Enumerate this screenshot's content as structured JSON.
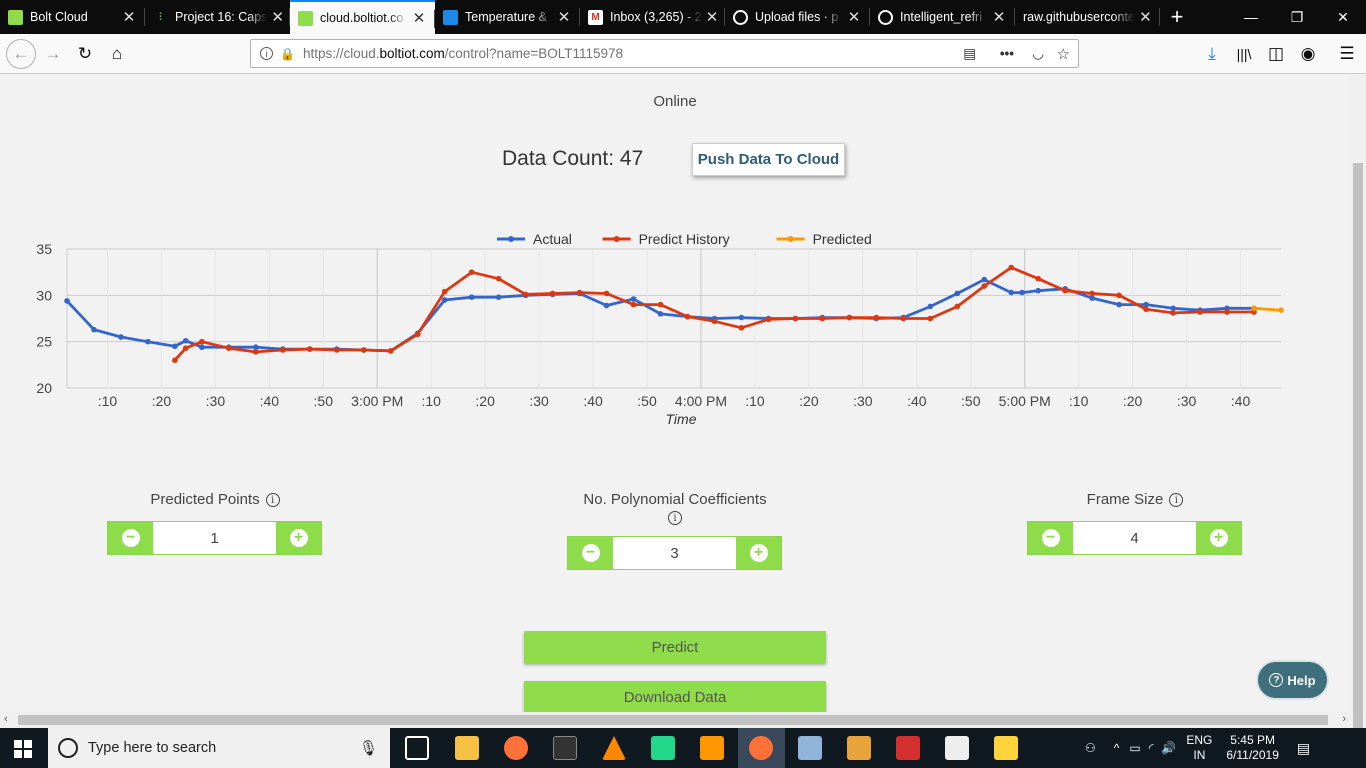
{
  "tabs": [
    {
      "label": "Bolt Cloud",
      "favicon": "bolt-icon",
      "color": "#8fdc4a",
      "active": false
    },
    {
      "label": "Project 16: Caps",
      "favicon": "soundwave-icon",
      "color": "#6bbf3a",
      "active": false
    },
    {
      "label": "cloud.boltiot.co",
      "favicon": "bolt-icon",
      "color": "#8fdc4a",
      "active": true
    },
    {
      "label": "Temperature &",
      "favicon": "hackster-icon",
      "color": "#1e88e5",
      "active": false
    },
    {
      "label": "Inbox (3,265) - 2",
      "favicon": "gmail-icon",
      "color": "#d93025",
      "active": false
    },
    {
      "label": "Upload files · p",
      "favicon": "github-icon",
      "color": "#ffffff",
      "active": false
    },
    {
      "label": "Intelligent_refri",
      "favicon": "github-icon",
      "color": "#ffffff",
      "active": false
    },
    {
      "label": "raw.githubuserconte",
      "favicon": "",
      "color": "",
      "active": false
    }
  ],
  "url": {
    "prefix": "https://cloud.",
    "domain": "boltiot.com",
    "path": "/control?name=BOLT1115978"
  },
  "page": {
    "status": "Online",
    "data_count_label": "Data Count: 47",
    "push_button": "Push Data To Cloud",
    "controls": {
      "predicted_points": {
        "label": "Predicted Points",
        "value": "1"
      },
      "poly_coeffs": {
        "label": "No. Polynomial Coefficients",
        "value": "3"
      },
      "frame_size": {
        "label": "Frame Size",
        "value": "4"
      }
    },
    "predict_button": "Predict",
    "download_button": "Download Data",
    "help_button": "Help"
  },
  "chart_data": {
    "type": "line",
    "title": "",
    "xlabel": "Time",
    "ylabel": "",
    "ylim": [
      20,
      35
    ],
    "yticks": [
      20,
      25,
      30,
      35
    ],
    "x_ticks": [
      ":10",
      ":20",
      ":30",
      ":40",
      ":50",
      "3:00 PM",
      ":10",
      ":20",
      ":30",
      ":40",
      ":50",
      "4:00 PM",
      ":10",
      ":20",
      ":30",
      ":40",
      ":50",
      "5:00 PM",
      ":10",
      ":20",
      ":30",
      ":40"
    ],
    "x_unit": "minutes after 2:00 PM",
    "x_tick_values": [
      10,
      20,
      30,
      40,
      50,
      60,
      70,
      80,
      90,
      100,
      110,
      120,
      130,
      140,
      150,
      160,
      170,
      180,
      190,
      200,
      210,
      220
    ],
    "xlim": [
      2.5,
      227.5
    ],
    "legend_position": "top-center",
    "series": [
      {
        "name": "Actual",
        "color": "#3366cc",
        "x": [
          2.5,
          7.5,
          12.5,
          17.5,
          22.5,
          24.5,
          27.5,
          32.5,
          37.5,
          42.5,
          47.5,
          52.5,
          57.5,
          62.5,
          67.5,
          72.5,
          77.5,
          82.5,
          87.5,
          92.5,
          97.5,
          102.5,
          107.5,
          112.5,
          117.5,
          122.5,
          127.5,
          132.5,
          137.5,
          142.5,
          147.5,
          152.5,
          157.5,
          162.5,
          167.5,
          172.5,
          177.5,
          179.5,
          182.5,
          187.5,
          192.5,
          197.5,
          202.5,
          207.5,
          212.5,
          217.5,
          222.5
        ],
        "y": [
          29.4,
          26.3,
          25.5,
          25.0,
          24.5,
          25.1,
          24.4,
          24.4,
          24.4,
          24.2,
          24.2,
          24.2,
          24.1,
          24.0,
          25.9,
          29.5,
          29.8,
          29.8,
          30.0,
          30.1,
          30.2,
          28.9,
          29.6,
          28.0,
          27.7,
          27.5,
          27.6,
          27.5,
          27.5,
          27.6,
          27.6,
          27.5,
          27.6,
          28.8,
          30.2,
          31.7,
          30.3,
          30.3,
          30.5,
          30.7,
          29.7,
          29.0,
          29.0,
          28.6,
          28.4,
          28.6,
          28.6
        ]
      },
      {
        "name": "Predict History",
        "color": "#dc3912",
        "x": [
          22.5,
          24.5,
          27.5,
          32.5,
          37.5,
          42.5,
          47.5,
          52.5,
          57.5,
          62.5,
          67.5,
          72.5,
          77.5,
          82.5,
          87.5,
          92.5,
          97.5,
          102.5,
          107.5,
          112.5,
          117.5,
          122.5,
          127.5,
          132.5,
          137.5,
          142.5,
          147.5,
          152.5,
          157.5,
          162.5,
          167.5,
          172.5,
          177.5,
          182.5,
          187.5,
          192.5,
          197.5,
          202.5,
          207.5,
          212.5,
          217.5,
          222.5
        ],
        "y": [
          23.0,
          24.3,
          25.0,
          24.3,
          23.9,
          24.1,
          24.2,
          24.1,
          24.1,
          24.0,
          25.8,
          30.4,
          32.5,
          31.8,
          30.1,
          30.2,
          30.3,
          30.2,
          29.0,
          29.0,
          27.7,
          27.2,
          26.5,
          27.4,
          27.5,
          27.5,
          27.6,
          27.6,
          27.5,
          27.5,
          28.8,
          31.0,
          33.0,
          31.8,
          30.5,
          30.2,
          30.0,
          28.5,
          28.1,
          28.2,
          28.2,
          28.2
        ]
      },
      {
        "name": "Predicted",
        "color": "#ff9900",
        "x": [
          222.5,
          227.5
        ],
        "y": [
          28.6,
          28.4
        ]
      }
    ]
  },
  "taskbar": {
    "search_placeholder": "Type here to search",
    "lang_top": "ENG",
    "lang_bottom": "IN",
    "time": "5:45 PM",
    "date": "6/11/2019"
  }
}
